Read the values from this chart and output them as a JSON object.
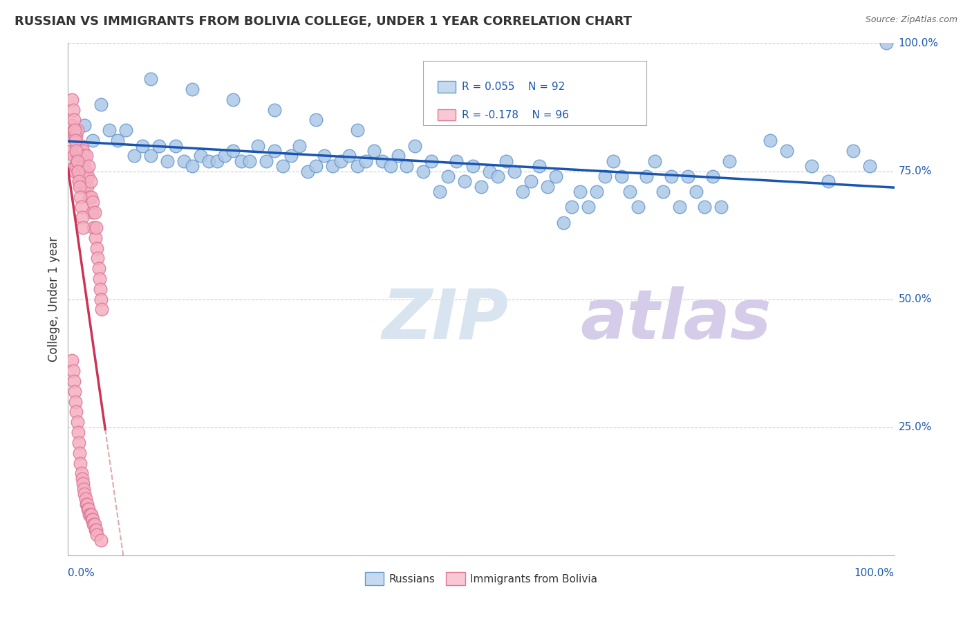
{
  "title": "RUSSIAN VS IMMIGRANTS FROM BOLIVIA COLLEGE, UNDER 1 YEAR CORRELATION CHART",
  "source": "Source: ZipAtlas.com",
  "ylabel": "College, Under 1 year",
  "blue_R": 0.055,
  "blue_N": 92,
  "pink_R": -0.178,
  "pink_N": 96,
  "blue_color": "#adc8e8",
  "blue_edge": "#6699cc",
  "pink_color": "#f4afc0",
  "pink_edge": "#dd7799",
  "blue_line_color": "#1a56b0",
  "pink_line_color": "#cc3355",
  "pink_dash_color": "#ddaaaa",
  "legend_blue_fill": "#c5daf0",
  "legend_pink_fill": "#f9c8d5",
  "watermark_color": "#d8e4f0",
  "blue_scatter_x": [
    0.02,
    0.03,
    0.04,
    0.05,
    0.06,
    0.07,
    0.08,
    0.09,
    0.1,
    0.11,
    0.12,
    0.13,
    0.14,
    0.15,
    0.16,
    0.17,
    0.18,
    0.19,
    0.2,
    0.21,
    0.22,
    0.23,
    0.24,
    0.25,
    0.26,
    0.27,
    0.28,
    0.29,
    0.3,
    0.31,
    0.32,
    0.33,
    0.34,
    0.35,
    0.36,
    0.37,
    0.38,
    0.39,
    0.4,
    0.41,
    0.42,
    0.43,
    0.44,
    0.45,
    0.46,
    0.47,
    0.48,
    0.49,
    0.5,
    0.51,
    0.52,
    0.53,
    0.54,
    0.55,
    0.56,
    0.57,
    0.58,
    0.59,
    0.6,
    0.61,
    0.62,
    0.63,
    0.64,
    0.65,
    0.66,
    0.67,
    0.68,
    0.69,
    0.7,
    0.71,
    0.72,
    0.73,
    0.74,
    0.75,
    0.76,
    0.77,
    0.78,
    0.79,
    0.8,
    0.85,
    0.87,
    0.9,
    0.92,
    0.95,
    0.97,
    0.99,
    0.1,
    0.15,
    0.2,
    0.25,
    0.3,
    0.35
  ],
  "blue_scatter_y": [
    0.84,
    0.81,
    0.88,
    0.83,
    0.81,
    0.83,
    0.78,
    0.8,
    0.78,
    0.8,
    0.77,
    0.8,
    0.77,
    0.76,
    0.78,
    0.77,
    0.77,
    0.78,
    0.79,
    0.77,
    0.77,
    0.8,
    0.77,
    0.79,
    0.76,
    0.78,
    0.8,
    0.75,
    0.76,
    0.78,
    0.76,
    0.77,
    0.78,
    0.76,
    0.77,
    0.79,
    0.77,
    0.76,
    0.78,
    0.76,
    0.8,
    0.75,
    0.77,
    0.71,
    0.74,
    0.77,
    0.73,
    0.76,
    0.72,
    0.75,
    0.74,
    0.77,
    0.75,
    0.71,
    0.73,
    0.76,
    0.72,
    0.74,
    0.65,
    0.68,
    0.71,
    0.68,
    0.71,
    0.74,
    0.77,
    0.74,
    0.71,
    0.68,
    0.74,
    0.77,
    0.71,
    0.74,
    0.68,
    0.74,
    0.71,
    0.68,
    0.74,
    0.68,
    0.77,
    0.81,
    0.79,
    0.76,
    0.73,
    0.79,
    0.76,
    1.0,
    0.93,
    0.91,
    0.89,
    0.87,
    0.85,
    0.83
  ],
  "pink_scatter_x": [
    0.005,
    0.005,
    0.007,
    0.007,
    0.008,
    0.008,
    0.009,
    0.009,
    0.01,
    0.01,
    0.01,
    0.011,
    0.011,
    0.012,
    0.012,
    0.013,
    0.013,
    0.014,
    0.014,
    0.015,
    0.015,
    0.016,
    0.016,
    0.017,
    0.018,
    0.018,
    0.019,
    0.02,
    0.02,
    0.021,
    0.022,
    0.023,
    0.024,
    0.025,
    0.026,
    0.027,
    0.028,
    0.029,
    0.03,
    0.031,
    0.032,
    0.033,
    0.034,
    0.035,
    0.036,
    0.037,
    0.038,
    0.039,
    0.04,
    0.041,
    0.005,
    0.006,
    0.007,
    0.008,
    0.009,
    0.01,
    0.011,
    0.012,
    0.013,
    0.014,
    0.015,
    0.016,
    0.017,
    0.018,
    0.005,
    0.006,
    0.007,
    0.008,
    0.009,
    0.01,
    0.011,
    0.012,
    0.013,
    0.014,
    0.015,
    0.016,
    0.017,
    0.018,
    0.019,
    0.02,
    0.021,
    0.022,
    0.023,
    0.024,
    0.025,
    0.026,
    0.027,
    0.028,
    0.029,
    0.03,
    0.031,
    0.032,
    0.033,
    0.034,
    0.035,
    0.04
  ],
  "pink_scatter_y": [
    0.84,
    0.79,
    0.83,
    0.78,
    0.82,
    0.76,
    0.81,
    0.75,
    0.8,
    0.76,
    0.82,
    0.77,
    0.83,
    0.78,
    0.75,
    0.79,
    0.73,
    0.77,
    0.74,
    0.78,
    0.72,
    0.76,
    0.8,
    0.76,
    0.79,
    0.73,
    0.76,
    0.78,
    0.72,
    0.75,
    0.78,
    0.72,
    0.74,
    0.76,
    0.7,
    0.73,
    0.7,
    0.67,
    0.69,
    0.64,
    0.67,
    0.62,
    0.64,
    0.6,
    0.58,
    0.56,
    0.54,
    0.52,
    0.5,
    0.48,
    0.89,
    0.87,
    0.85,
    0.83,
    0.81,
    0.79,
    0.77,
    0.75,
    0.73,
    0.72,
    0.7,
    0.68,
    0.66,
    0.64,
    0.38,
    0.36,
    0.34,
    0.32,
    0.3,
    0.28,
    0.26,
    0.24,
    0.22,
    0.2,
    0.18,
    0.16,
    0.15,
    0.14,
    0.13,
    0.12,
    0.11,
    0.1,
    0.1,
    0.09,
    0.09,
    0.08,
    0.08,
    0.08,
    0.07,
    0.07,
    0.06,
    0.06,
    0.05,
    0.05,
    0.04,
    0.03
  ]
}
